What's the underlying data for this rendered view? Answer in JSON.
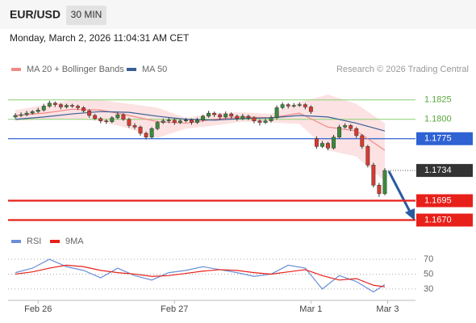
{
  "chart_data": {
    "type": "candlestick",
    "title": "EUR/USD",
    "timeframe": "30 MIN",
    "subtitle": "Monday, March 2, 2026 11:04:31 AM CET",
    "credit": "Research © 2026 Trading Central",
    "up_color": "#3a8a3a",
    "down_color": "#d83a2e",
    "xlim": [
      0,
      67
    ],
    "xticks": [
      {
        "value": 5,
        "label": "Feb 26"
      },
      {
        "value": 29,
        "label": "Feb 27"
      },
      {
        "value": 53,
        "label": "Mar 1"
      },
      {
        "value": 66.5,
        "label": "Mar 3"
      }
    ],
    "ylim": [
      1.1657,
      1.1855
    ],
    "x": [
      1,
      2,
      3,
      4,
      5,
      6,
      7,
      8,
      9,
      10,
      11,
      12,
      13,
      14,
      15,
      16,
      17,
      18,
      19,
      20,
      21,
      22,
      23,
      24,
      25,
      26,
      27,
      28,
      29,
      30,
      31,
      32,
      33,
      34,
      35,
      36,
      37,
      38,
      39,
      40,
      41,
      42,
      43,
      44,
      45,
      46,
      47,
      48,
      49,
      50,
      51,
      52,
      53,
      54,
      55,
      56,
      57,
      58,
      59,
      60,
      61,
      62,
      63,
      64,
      65,
      66
    ],
    "open": [
      1.1803,
      1.1805,
      1.1806,
      1.1808,
      1.181,
      1.1812,
      1.1817,
      1.1821,
      1.1819,
      1.1816,
      1.1818,
      1.1817,
      1.1815,
      1.1811,
      1.1805,
      1.1801,
      1.1798,
      1.1797,
      1.1802,
      1.1806,
      1.18,
      1.1792,
      1.179,
      1.1782,
      1.1777,
      1.1788,
      1.1796,
      1.1798,
      1.1799,
      1.1796,
      1.1798,
      1.1799,
      1.1796,
      1.1799,
      1.1804,
      1.1808,
      1.1806,
      1.1803,
      1.1807,
      1.1804,
      1.1801,
      1.1804,
      1.1802,
      1.1798,
      1.1796,
      1.1798,
      1.1802,
      1.1815,
      1.1819,
      1.1817,
      1.1818,
      1.1819,
      1.1816,
      1.1775,
      1.1765,
      1.1769,
      1.1763,
      1.1777,
      1.179,
      1.1792,
      1.1788,
      1.1779,
      1.1765,
      1.1741,
      1.1715,
      1.1704
    ],
    "high": [
      1.1808,
      1.1809,
      1.1811,
      1.1812,
      1.1815,
      1.182,
      1.1824,
      1.1823,
      1.1821,
      1.182,
      1.182,
      1.1819,
      1.1817,
      1.1813,
      1.1807,
      1.1803,
      1.18,
      1.1804,
      1.1809,
      1.1808,
      1.1802,
      1.1795,
      1.1792,
      1.1784,
      1.179,
      1.1798,
      1.1801,
      1.1802,
      1.1801,
      1.18,
      1.1802,
      1.1801,
      1.1802,
      1.1806,
      1.1811,
      1.181,
      1.1808,
      1.181,
      1.1809,
      1.1806,
      1.1807,
      1.1806,
      1.1804,
      1.18,
      1.1801,
      1.1805,
      1.1818,
      1.1822,
      1.1821,
      1.1821,
      1.1822,
      1.1821,
      1.1818,
      1.1778,
      1.1772,
      1.1771,
      1.178,
      1.1793,
      1.1795,
      1.1794,
      1.179,
      1.1781,
      1.1767,
      1.1744,
      1.1718,
      1.1737
    ],
    "low": [
      1.1801,
      1.1803,
      1.1804,
      1.1806,
      1.1808,
      1.181,
      1.1815,
      1.1816,
      1.1813,
      1.1814,
      1.1815,
      1.1812,
      1.1809,
      1.1802,
      1.1799,
      1.1795,
      1.1794,
      1.1795,
      1.18,
      1.1798,
      1.1789,
      1.1787,
      1.1779,
      1.1774,
      1.1775,
      1.1786,
      1.1794,
      1.1795,
      1.1793,
      1.1794,
      1.1796,
      1.1793,
      1.1794,
      1.1797,
      1.1802,
      1.1803,
      1.18,
      1.1801,
      1.1801,
      1.1798,
      1.1799,
      1.1799,
      1.1795,
      1.1792,
      1.1794,
      1.1796,
      1.18,
      1.1813,
      1.1814,
      1.1815,
      1.1816,
      1.1813,
      1.1807,
      1.1762,
      1.1763,
      1.176,
      1.1761,
      1.1775,
      1.1788,
      1.1785,
      1.1776,
      1.1762,
      1.1738,
      1.1712,
      1.17,
      1.1702
    ],
    "close": [
      1.1805,
      1.1806,
      1.1808,
      1.181,
      1.1812,
      1.1817,
      1.1821,
      1.1819,
      1.1816,
      1.1818,
      1.1817,
      1.1815,
      1.1811,
      1.1805,
      1.1801,
      1.1798,
      1.1797,
      1.1802,
      1.1806,
      1.18,
      1.1792,
      1.179,
      1.1782,
      1.1777,
      1.1788,
      1.1796,
      1.1798,
      1.1799,
      1.1796,
      1.1798,
      1.1799,
      1.1796,
      1.1799,
      1.1804,
      1.1808,
      1.1806,
      1.1803,
      1.1807,
      1.1804,
      1.1801,
      1.1804,
      1.1802,
      1.1798,
      1.1796,
      1.1798,
      1.1802,
      1.1815,
      1.1819,
      1.1817,
      1.1818,
      1.1819,
      1.1816,
      1.181,
      1.1765,
      1.1769,
      1.1763,
      1.1777,
      1.179,
      1.1792,
      1.1788,
      1.1779,
      1.1765,
      1.1741,
      1.1715,
      1.1704,
      1.1734
    ],
    "series": [
      {
        "name": "MA 20 + Bollinger Bands",
        "color": "#f08a8a",
        "band_color": "#fbd5d5",
        "x": [
          1,
          6,
          11,
          16,
          21,
          26,
          31,
          36,
          41,
          46,
          51,
          56,
          61,
          66
        ],
        "values": [
          1.1805,
          1.1808,
          1.1813,
          1.1812,
          1.1805,
          1.1797,
          1.1795,
          1.18,
          1.1803,
          1.1802,
          1.1808,
          1.179,
          1.1785,
          1.176
        ],
        "upper": [
          1.1812,
          1.1818,
          1.1825,
          1.1825,
          1.182,
          1.1815,
          1.1802,
          1.1808,
          1.1809,
          1.1807,
          1.1822,
          1.1832,
          1.182,
          1.1795
        ],
        "lower": [
          1.1798,
          1.18,
          1.1801,
          1.1798,
          1.1788,
          1.1776,
          1.1788,
          1.1792,
          1.1797,
          1.1796,
          1.1794,
          1.176,
          1.1752,
          1.172
        ]
      },
      {
        "name": "MA 50",
        "color": "#3a5f95",
        "x": [
          1,
          6,
          11,
          16,
          21,
          26,
          31,
          36,
          41,
          46,
          51,
          56,
          61,
          66
        ],
        "values": [
          1.18,
          1.1803,
          1.1807,
          1.181,
          1.1809,
          1.1804,
          1.18,
          1.1799,
          1.1801,
          1.1802,
          1.1805,
          1.1803,
          1.1795,
          1.1785
        ]
      }
    ],
    "levels": [
      {
        "value": 1.1825,
        "color": "#8ccf72",
        "boxed": false
      },
      {
        "value": 1.18,
        "label": "1.1800",
        "color": "#8ccf72",
        "boxed": false
      },
      {
        "value": 1.1775,
        "color": "#2f62d3",
        "boxed": true
      },
      {
        "value": 1.1695,
        "color": "#e8201a",
        "boxed": true
      },
      {
        "value": 1.167,
        "label": "1.1670",
        "color": "#e8201a",
        "boxed": true
      }
    ],
    "last_price": {
      "value": 1.1734,
      "color": "#333333"
    },
    "rsi": {
      "ylim": [
        19,
        82
      ],
      "yticks": [
        70,
        50,
        30
      ],
      "series": [
        {
          "name": "RSI",
          "color": "#6a8fd8",
          "x": [
            1,
            4,
            7,
            10,
            13,
            16,
            19,
            22,
            25,
            28,
            31,
            34,
            37,
            40,
            43,
            46,
            49,
            52,
            55,
            58,
            61,
            64,
            66
          ],
          "values": [
            52,
            58,
            70,
            60,
            55,
            45,
            58,
            48,
            42,
            52,
            55,
            60,
            56,
            52,
            47,
            50,
            62,
            58,
            30,
            48,
            40,
            26,
            36
          ]
        },
        {
          "name": "9MA",
          "color": "#e8201a",
          "x": [
            1,
            4,
            7,
            10,
            13,
            16,
            19,
            22,
            25,
            28,
            31,
            34,
            37,
            40,
            43,
            46,
            49,
            52,
            55,
            58,
            61,
            64,
            66
          ],
          "values": [
            50,
            53,
            58,
            62,
            60,
            55,
            52,
            50,
            47,
            48,
            51,
            54,
            56,
            55,
            52,
            50,
            53,
            56,
            48,
            42,
            44,
            35,
            33
          ]
        }
      ]
    }
  }
}
